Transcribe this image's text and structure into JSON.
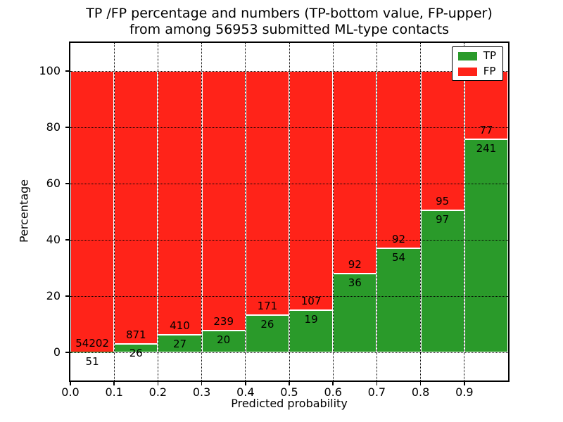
{
  "figure": {
    "title_line1": "TP /FP percentage and numbers (TP-bottom value, FP-upper)",
    "title_line2": "from among 56953 submitted ML-type contacts"
  },
  "axes": {
    "xlabel": "Predicted probability",
    "ylabel": "Percentage",
    "xtick_labels": [
      "0.0",
      "0.1",
      "0.2",
      "0.3",
      "0.4",
      "0.5",
      "0.6",
      "0.7",
      "0.8",
      "0.9"
    ],
    "ytick_labels": [
      "0",
      "20",
      "40",
      "60",
      "80",
      "100"
    ]
  },
  "legend": {
    "position": "upper right",
    "items": [
      {
        "label": "TP",
        "color": "#2a9a2a"
      },
      {
        "label": "FP",
        "color": "#ff2319"
      }
    ]
  },
  "chart_data": {
    "type": "bar",
    "stacked": true,
    "normalized": "percent_of_bin_total",
    "title": "TP /FP percentage and numbers (TP-bottom value, FP-upper) from among 56953 submitted ML-type contacts",
    "total_submitted": 56953,
    "xlabel": "Predicted probability",
    "ylabel": "Percentage",
    "xlim": [
      0.0,
      1.0
    ],
    "ylim": [
      -10,
      110
    ],
    "xticks": [
      0.0,
      0.1,
      0.2,
      0.3,
      0.4,
      0.5,
      0.6,
      0.7,
      0.8,
      0.9
    ],
    "yticks": [
      0,
      20,
      40,
      60,
      80,
      100
    ],
    "grid": "dotted",
    "legend_position": "upper right",
    "bin_edges": [
      0.0,
      0.1,
      0.2,
      0.3,
      0.4,
      0.5,
      0.6,
      0.7,
      0.8,
      0.9,
      1.0
    ],
    "series": [
      {
        "name": "TP",
        "color": "#2a9a2a",
        "counts": [
          51,
          26,
          27,
          20,
          26,
          19,
          36,
          54,
          97,
          241
        ],
        "percent": [
          0.09,
          2.9,
          6.18,
          7.72,
          13.2,
          15.08,
          28.13,
          36.99,
          50.52,
          75.79
        ]
      },
      {
        "name": "FP",
        "color": "#ff2319",
        "counts": [
          54202,
          871,
          410,
          239,
          171,
          107,
          92,
          92,
          95,
          77
        ],
        "percent": [
          99.91,
          97.1,
          93.82,
          92.28,
          86.8,
          84.92,
          71.87,
          63.01,
          49.48,
          24.21
        ]
      }
    ]
  }
}
